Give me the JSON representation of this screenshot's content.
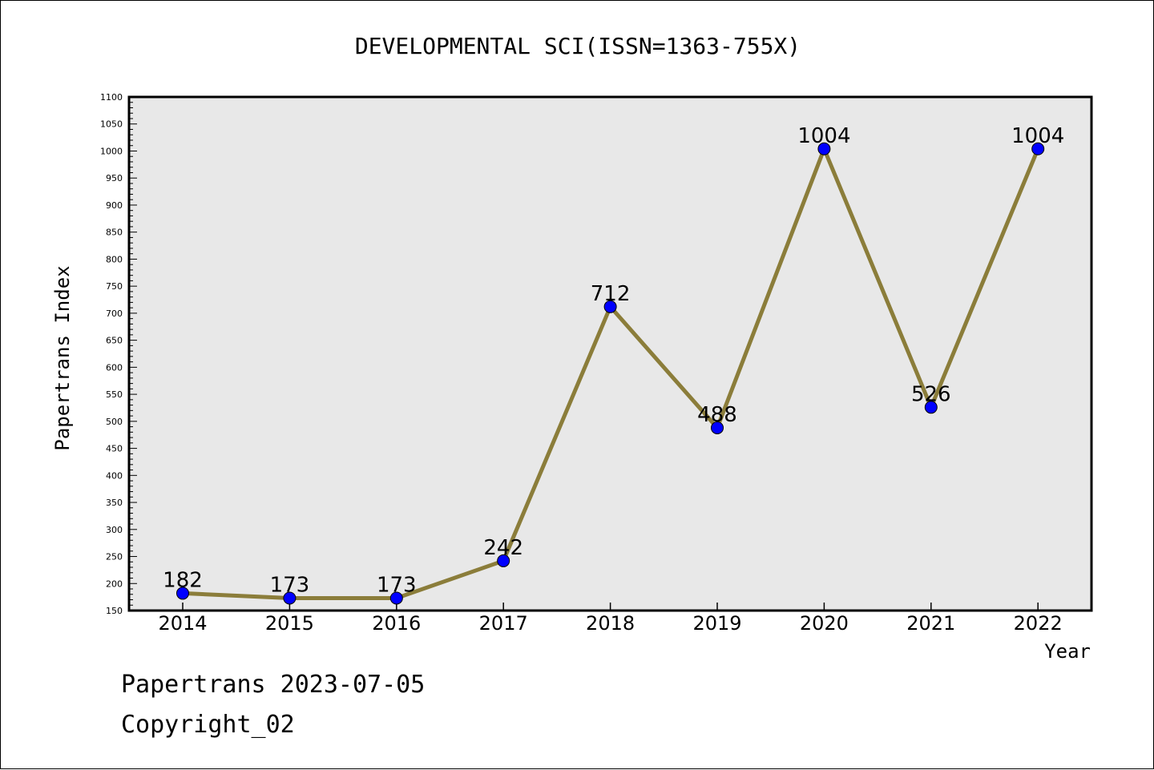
{
  "chart_data": {
    "type": "line",
    "title": "DEVELOPMENTAL SCI(ISSN=1363-755X)",
    "xlabel": "Year",
    "ylabel": "Papertrans Index",
    "categories": [
      "2014",
      "2015",
      "2016",
      "2017",
      "2018",
      "2019",
      "2020",
      "2021",
      "2022"
    ],
    "series": [
      {
        "values": [
          182,
          173,
          173,
          242,
          712,
          488,
          1004,
          526,
          1004
        ]
      }
    ],
    "data_labels": [
      "182",
      "173",
      "173",
      "242",
      "712",
      "488",
      "1004",
      "526",
      "1004"
    ],
    "ylim": [
      150,
      1100
    ],
    "yticks": [
      150,
      200,
      250,
      300,
      350,
      400,
      450,
      500,
      550,
      600,
      650,
      700,
      750,
      800,
      850,
      900,
      950,
      1000,
      1050,
      1100
    ],
    "grid": false,
    "line_color": "#8b7d3a",
    "marker_color": "#0000ff",
    "plot_background": "#e8e8e8"
  },
  "footer": {
    "line1": "Papertrans 2023-07-05",
    "line2": "Copyright_02"
  }
}
